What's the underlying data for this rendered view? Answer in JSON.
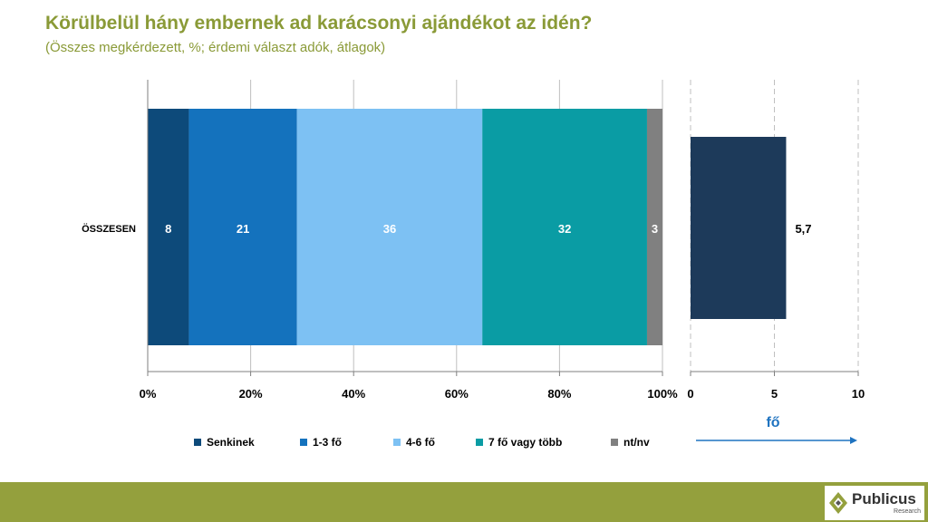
{
  "header": {
    "title": "Körülbelül hány embernek ad karácsonyi ajándékot az idén?",
    "subtitle": "(Összes megkérdezett, %; érdemi választ adók, átlagok)"
  },
  "chart_data": [
    {
      "type": "bar",
      "orientation": "horizontal",
      "stacked": true,
      "categories": [
        "ÖSSZESEN"
      ],
      "series": [
        {
          "name": "Senkinek",
          "values": [
            8
          ],
          "color": "#0d4a7a"
        },
        {
          "name": "1-3 fő",
          "values": [
            21
          ],
          "color": "#1472bd"
        },
        {
          "name": "4-6 fő",
          "values": [
            36
          ],
          "color": "#7dc1f3"
        },
        {
          "name": "7 fő vagy több",
          "values": [
            32
          ],
          "color": "#0a9ca4"
        },
        {
          "name": "nt/nv",
          "values": [
            3
          ],
          "color": "#808080"
        }
      ],
      "xlim": [
        0,
        100
      ],
      "xticks": [
        "0%",
        "20%",
        "40%",
        "60%",
        "80%",
        "100%"
      ],
      "grid": true
    },
    {
      "type": "bar",
      "orientation": "horizontal",
      "categories": [
        "ÖSSZESEN"
      ],
      "values": [
        5.7
      ],
      "value_labels": [
        "5,7"
      ],
      "color": "#1d3a5a",
      "xlim": [
        0,
        10
      ],
      "xticks": [
        "0",
        "5",
        "10"
      ],
      "xlabel": "fő",
      "grid": true
    }
  ],
  "footer": {
    "logo_text": "Publicus",
    "logo_sub": "Research"
  }
}
